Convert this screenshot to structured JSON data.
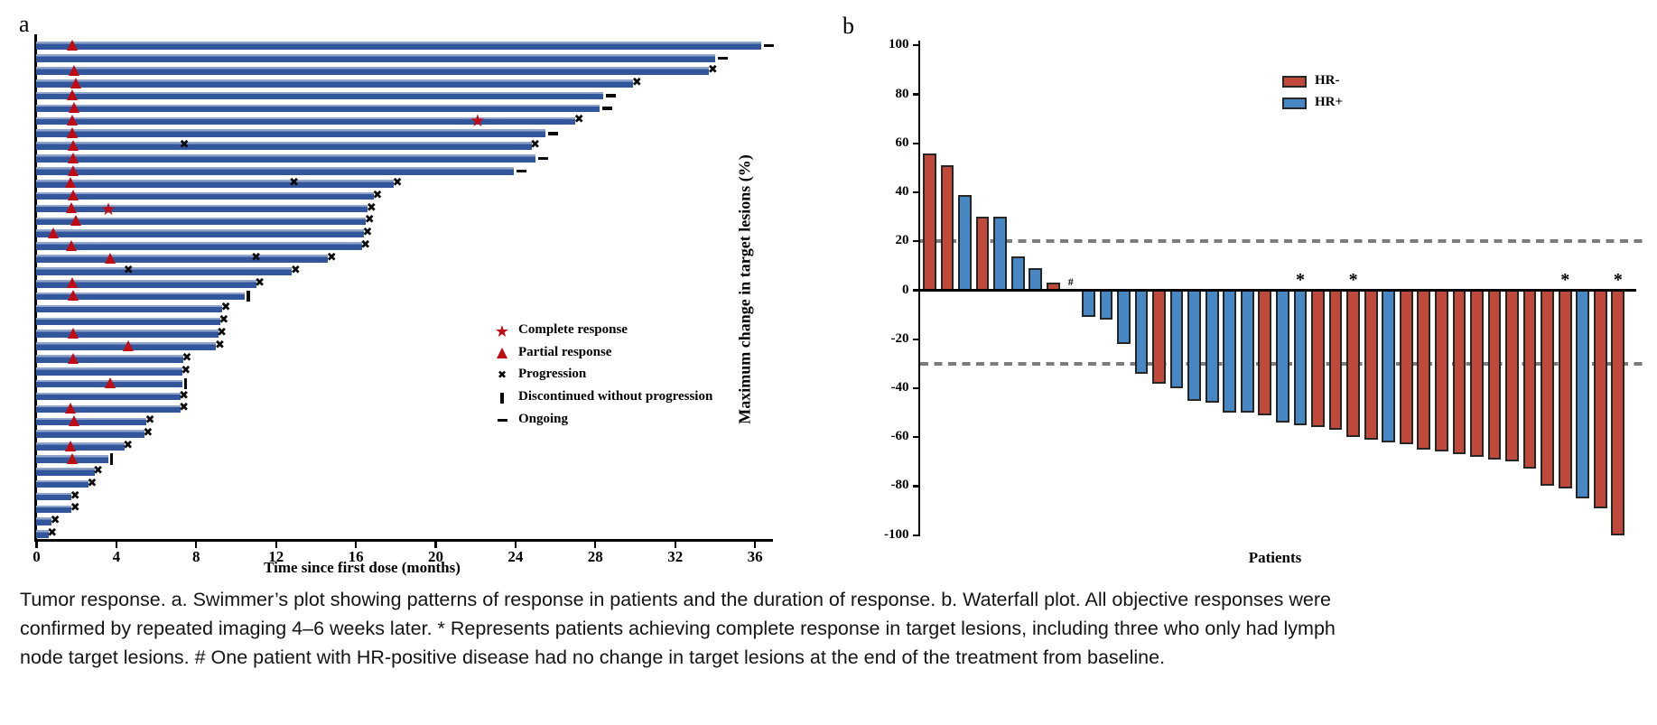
{
  "colors": {
    "swimmer_bar": "#31569c",
    "swimmer_bar_highlight": "#8ea4cb",
    "marker_red": "#c00b13",
    "marker_black": "#0a0a0a",
    "hr_negative": "#bf4a3c",
    "hr_positive": "#4787c4",
    "bar_outline": "#262626",
    "dashed_reference": "#7c7c7c",
    "axis": "#000000"
  },
  "chart_data": [
    {
      "type": "bar",
      "variant": "swimmer",
      "panel_label": "a",
      "xlabel": "Time since first dose (months)",
      "x_ticks": [
        0,
        4,
        8,
        12,
        16,
        20,
        24,
        28,
        32,
        36
      ],
      "xlim": [
        0,
        37
      ],
      "grid": false,
      "legend_position": "center-right",
      "legend": [
        {
          "marker": "star",
          "label": "Complete response"
        },
        {
          "marker": "triangle",
          "label": "Partial response"
        },
        {
          "marker": "x",
          "label": "Progression"
        },
        {
          "marker": "tick",
          "label": "Discontinued without progression"
        },
        {
          "marker": "dash",
          "label": "Ongoing"
        }
      ],
      "patients": [
        {
          "duration": 36.3,
          "end": "ongoing",
          "partial_response_at": 1.8
        },
        {
          "duration": 34.0,
          "end": "ongoing"
        },
        {
          "duration": 33.7,
          "end": "progression",
          "partial_response_at": 1.9
        },
        {
          "duration": 29.9,
          "end": "progression",
          "partial_response_at": 2.0
        },
        {
          "duration": 28.4,
          "end": "ongoing",
          "partial_response_at": 1.8
        },
        {
          "duration": 28.2,
          "end": "ongoing",
          "partial_response_at": 1.9
        },
        {
          "duration": 27.0,
          "end": "progression",
          "partial_response_at": 1.8,
          "complete_response_at": 22.1
        },
        {
          "duration": 25.5,
          "end": "ongoing",
          "partial_response_at": 1.8
        },
        {
          "duration": 24.8,
          "end": "progression",
          "partial_response_at": 1.85,
          "progression_marks": [
            7.4
          ]
        },
        {
          "duration": 25.0,
          "end": "ongoing",
          "partial_response_at": 1.85
        },
        {
          "duration": 23.9,
          "end": "ongoing",
          "partial_response_at": 1.85
        },
        {
          "duration": 17.9,
          "end": "progression",
          "partial_response_at": 1.7,
          "progression_marks": [
            12.9
          ]
        },
        {
          "duration": 16.9,
          "end": "progression",
          "partial_response_at": 1.85
        },
        {
          "duration": 16.6,
          "end": "progression",
          "partial_response_at": 1.75,
          "complete_response_at": 3.6
        },
        {
          "duration": 16.5,
          "end": "progression",
          "partial_response_at": 2.0
        },
        {
          "duration": 16.4,
          "end": "progression",
          "partial_response_at": 0.85
        },
        {
          "duration": 16.3,
          "end": "progression",
          "partial_response_at": 1.75
        },
        {
          "duration": 14.6,
          "end": "progression",
          "partial_response_at": 3.7,
          "progression_marks": [
            11.0
          ]
        },
        {
          "duration": 12.8,
          "end": "progression",
          "progression_marks": [
            4.6
          ]
        },
        {
          "duration": 11.0,
          "end": "progression",
          "partial_response_at": 1.8
        },
        {
          "duration": 10.45,
          "end": "discontinued",
          "partial_response_at": 1.85
        },
        {
          "duration": 9.3,
          "end": "progression"
        },
        {
          "duration": 9.2,
          "end": "progression"
        },
        {
          "duration": 9.1,
          "end": "progression",
          "partial_response_at": 1.85
        },
        {
          "duration": 9.0,
          "end": "progression",
          "partial_response_at": 4.6
        },
        {
          "duration": 7.35,
          "end": "progression",
          "partial_response_at": 1.85
        },
        {
          "duration": 7.3,
          "end": "progression"
        },
        {
          "duration": 7.3,
          "end": "discontinued",
          "partial_response_at": 3.7
        },
        {
          "duration": 7.2,
          "end": "progression"
        },
        {
          "duration": 7.2,
          "end": "progression",
          "partial_response_at": 1.7
        },
        {
          "duration": 5.5,
          "end": "progression",
          "partial_response_at": 1.9
        },
        {
          "duration": 5.4,
          "end": "progression"
        },
        {
          "duration": 4.4,
          "end": "progression",
          "partial_response_at": 1.7
        },
        {
          "duration": 3.6,
          "end": "discontinued",
          "partial_response_at": 1.8
        },
        {
          "duration": 2.9,
          "end": "progression"
        },
        {
          "duration": 2.6,
          "end": "progression"
        },
        {
          "duration": 1.75,
          "end": "progression"
        },
        {
          "duration": 1.75,
          "end": "progression"
        },
        {
          "duration": 0.75,
          "end": "progression"
        },
        {
          "duration": 0.6,
          "end": "progression"
        }
      ]
    },
    {
      "type": "bar",
      "variant": "waterfall",
      "panel_label": "b",
      "ylabel": "Maximum change in target lesions (%)",
      "xlabel": "Patients",
      "y_ticks": [
        100,
        80,
        60,
        40,
        20,
        0,
        -20,
        -40,
        -60,
        -80,
        -100
      ],
      "ylim": [
        -100,
        100
      ],
      "grid": false,
      "reference_lines": [
        20,
        -30
      ],
      "legend_position": "top-right",
      "legend": [
        {
          "label": "HR-",
          "group": "HR-"
        },
        {
          "label": "HR+",
          "group": "HR+"
        }
      ],
      "bars": [
        {
          "value": 56,
          "group": "HR-"
        },
        {
          "value": 51,
          "group": "HR-"
        },
        {
          "value": 39,
          "group": "HR+"
        },
        {
          "value": 30,
          "group": "HR-"
        },
        {
          "value": 30,
          "group": "HR+"
        },
        {
          "value": 14,
          "group": "HR+"
        },
        {
          "value": 9,
          "group": "HR+"
        },
        {
          "value": 3,
          "group": "HR-"
        },
        {
          "value": 0,
          "group": "HR+",
          "mark": "#"
        },
        {
          "value": -11,
          "group": "HR+"
        },
        {
          "value": -12,
          "group": "HR+"
        },
        {
          "value": -22,
          "group": "HR+"
        },
        {
          "value": -34,
          "group": "HR+"
        },
        {
          "value": -38,
          "group": "HR-"
        },
        {
          "value": -40,
          "group": "HR+"
        },
        {
          "value": -45,
          "group": "HR+"
        },
        {
          "value": -46,
          "group": "HR+"
        },
        {
          "value": -50,
          "group": "HR+"
        },
        {
          "value": -50,
          "group": "HR+"
        },
        {
          "value": -51,
          "group": "HR-"
        },
        {
          "value": -54,
          "group": "HR+"
        },
        {
          "value": -55,
          "group": "HR+",
          "mark": "*"
        },
        {
          "value": -56,
          "group": "HR-"
        },
        {
          "value": -57,
          "group": "HR-"
        },
        {
          "value": -60,
          "group": "HR-",
          "mark": "*"
        },
        {
          "value": -61,
          "group": "HR-"
        },
        {
          "value": -62,
          "group": "HR+"
        },
        {
          "value": -63,
          "group": "HR-"
        },
        {
          "value": -65,
          "group": "HR-"
        },
        {
          "value": -66,
          "group": "HR-"
        },
        {
          "value": -67,
          "group": "HR-"
        },
        {
          "value": -68,
          "group": "HR-"
        },
        {
          "value": -69,
          "group": "HR-"
        },
        {
          "value": -70,
          "group": "HR-"
        },
        {
          "value": -73,
          "group": "HR-"
        },
        {
          "value": -80,
          "group": "HR-"
        },
        {
          "value": -81,
          "group": "HR-",
          "mark": "*"
        },
        {
          "value": -85,
          "group": "HR+"
        },
        {
          "value": -89,
          "group": "HR-"
        },
        {
          "value": -100,
          "group": "HR-",
          "mark": "*"
        }
      ]
    }
  ],
  "caption": {
    "lines": [
      "Tumor response. a. Swimmer’s plot showing patterns of response in patients and the duration of response. b. Waterfall plot. All objective responses were",
      "confirmed by repeated imaging 4–6 weeks later. * Represents patients achieving complete response in target lesions, including three who only had lymph",
      "node target lesions. # One patient with HR-positive disease had no change in target lesions at the end of the treatment from baseline."
    ]
  }
}
